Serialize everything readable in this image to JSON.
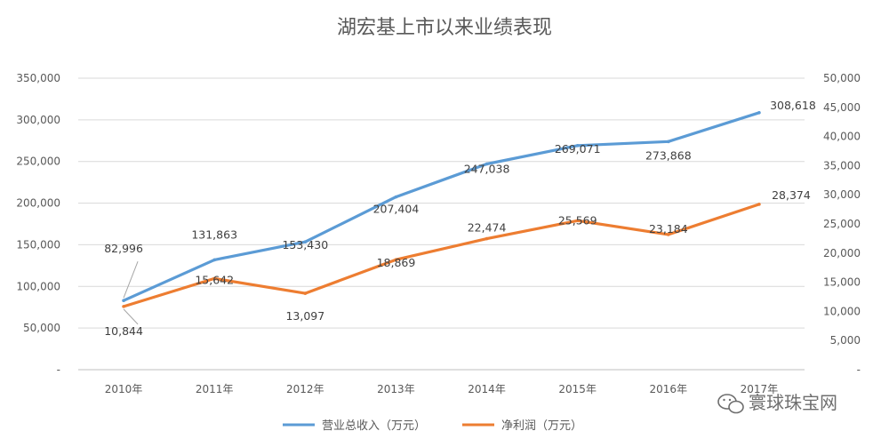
{
  "chart_data": {
    "type": "line",
    "title": "湖宏基上市以来业绩表现",
    "categories": [
      "2010年",
      "2011年",
      "2012年",
      "2013年",
      "2014年",
      "2015年",
      "2016年",
      "2017年"
    ],
    "series": [
      {
        "name": "营业总收入（万元）",
        "axis": "left",
        "color": "#5B9BD5",
        "values": [
          82996,
          131863,
          153430,
          207404,
          247038,
          269071,
          273868,
          308618
        ],
        "labels": [
          "82,996",
          "131,863",
          "153,430",
          "207,404",
          "247,038",
          "269,071",
          "273,868",
          "308,618"
        ]
      },
      {
        "name": "净利润（万元）",
        "axis": "right",
        "color": "#ED7D31",
        "values": [
          10844,
          15642,
          13097,
          18869,
          22474,
          25569,
          23184,
          28374
        ],
        "labels": [
          "10,844",
          "15,642",
          "13,097",
          "18,869",
          "22,474",
          "25,569",
          "23,184",
          "28,374"
        ]
      }
    ],
    "y_left": {
      "min": 0,
      "max": 350000,
      "ticks": [
        "-",
        "50,000",
        "100,000",
        "150,000",
        "200,000",
        "250,000",
        "300,000",
        "350,000"
      ]
    },
    "y_right": {
      "min": 0,
      "max": 50000,
      "ticks": [
        "-",
        "5,000",
        "10,000",
        "15,000",
        "20,000",
        "25,000",
        "30,000",
        "35,000",
        "40,000",
        "45,000",
        "50,000"
      ]
    },
    "grid": true,
    "legend": "bottom"
  },
  "watermark": {
    "text": "寰球珠宝网",
    "icon": "wechat-icon"
  }
}
